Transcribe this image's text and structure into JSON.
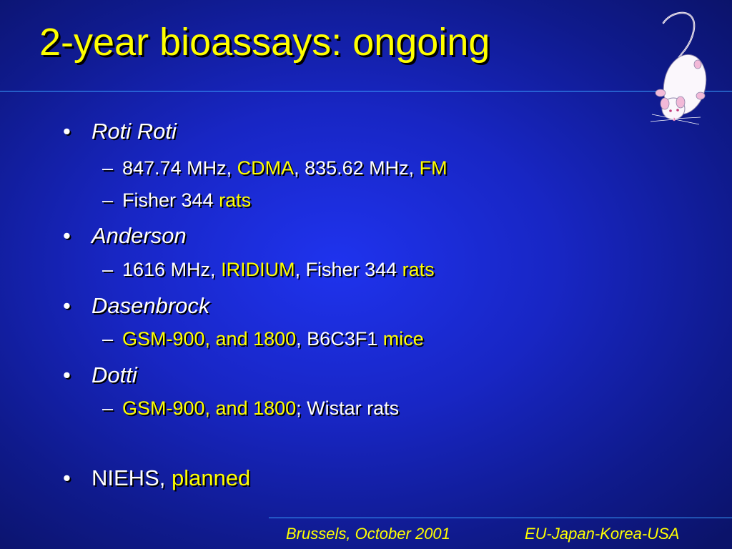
{
  "slide": {
    "title": "2-year bioassays: ongoing",
    "bullet_mark": "•",
    "dash_mark": "–",
    "items": [
      {
        "label": "Roti Roti"
      },
      {
        "parts": [
          "847.74 MHz, ",
          "CDMA",
          ", 835.62 MHz, ",
          "FM"
        ]
      },
      {
        "parts": [
          "Fisher 344 ",
          "rats"
        ]
      },
      {
        "label": "Anderson"
      },
      {
        "parts": [
          "1616 MHz, ",
          "IRIDIUM",
          ", Fisher 344 ",
          "rats"
        ]
      },
      {
        "label": "Dasenbrock"
      },
      {
        "parts": [
          "GSM-900, and 1800",
          ", B6C3F1 ",
          "mice"
        ]
      },
      {
        "label": "Dotti"
      },
      {
        "parts": [
          "GSM-900, and 1800",
          "; Wistar rats"
        ]
      },
      {
        "parts": [
          "NIEHS, ",
          "planned"
        ]
      }
    ],
    "footer": {
      "location_date": "Brussels, October 2001",
      "event": "EU-Japan-Korea-USA"
    },
    "colors": {
      "background": "#1826c4",
      "title": "#ffff00",
      "highlight": "#ffff00",
      "text": "#ffffff",
      "rule": "#3aa0ff"
    },
    "icons": [
      "white-rat-icon"
    ]
  }
}
